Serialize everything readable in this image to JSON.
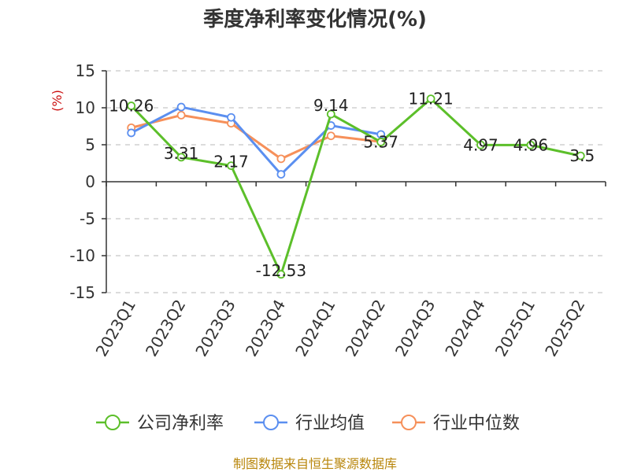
{
  "source": "制图数据来自恒生聚源数据库",
  "colors": {
    "company": "#5cbf2a",
    "industry_avg": "#5b8ff0",
    "industry_median": "#f6905a",
    "ylabel": "#cc1111",
    "source": "#b8860b",
    "grid": "#c8c8c8",
    "axis": "#333333"
  },
  "chart_data": {
    "type": "line",
    "title": "季度净利率变化情况(%)",
    "xlabel": "",
    "ylabel": "(%)",
    "ylim": [
      -15,
      15
    ],
    "yticks": [
      15,
      10,
      5,
      0,
      -5,
      -10,
      -15
    ],
    "categories": [
      "2023Q1",
      "2023Q2",
      "2023Q3",
      "2023Q4",
      "2024Q1",
      "2024Q2",
      "2024Q3",
      "2024Q4",
      "2025Q1",
      "2025Q2"
    ],
    "grid": true,
    "legend_position": "bottom",
    "series": [
      {
        "name": "公司净利率",
        "color": "#5cbf2a",
        "values": [
          10.26,
          3.31,
          2.17,
          -12.53,
          9.14,
          5.37,
          11.21,
          4.97,
          4.96,
          3.5
        ],
        "labels": [
          "10.26",
          "3.31",
          "2.17",
          "-12.53",
          "9.14",
          "5.37",
          "11.21",
          "4.97",
          "4.96",
          "3.5"
        ]
      },
      {
        "name": "行业均值",
        "color": "#5b8ff0",
        "values": [
          6.6,
          10.1,
          8.7,
          1.0,
          7.6,
          6.4,
          null,
          null,
          null,
          null
        ]
      },
      {
        "name": "行业中位数",
        "color": "#f6905a",
        "values": [
          7.3,
          9.0,
          7.9,
          3.1,
          6.2,
          5.4,
          null,
          null,
          null,
          null
        ]
      }
    ]
  }
}
